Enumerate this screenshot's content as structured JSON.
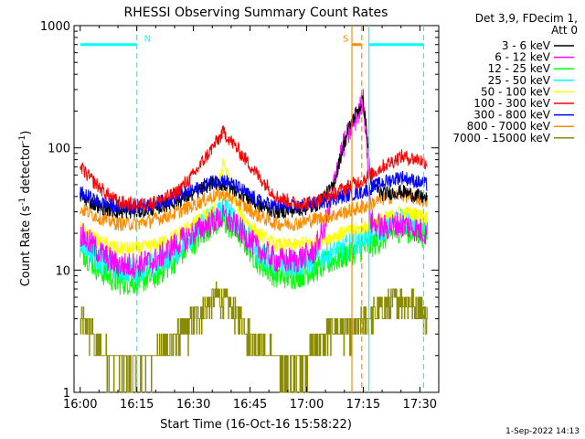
{
  "chart_data": {
    "type": "line",
    "title": "RHESSI Observing Summary Count Rates",
    "xlabel": "Start Time (16-Oct-16 15:58:22)",
    "ylabel_main": "Count Rate (s",
    "ylabel_sup1": "-1",
    "ylabel_mid": " detector",
    "ylabel_sup2": "-1",
    "ylabel_end": ")",
    "yscale": "log",
    "xlim": [
      "15:58:22",
      "17:35:00"
    ],
    "ylim": [
      1,
      1000
    ],
    "x_ticks": [
      {
        "t": "16:00",
        "m": 0
      },
      {
        "t": "16:15",
        "m": 15
      },
      {
        "t": "16:30",
        "m": 30
      },
      {
        "t": "16:45",
        "m": 45
      },
      {
        "t": "17:00",
        "m": 60
      },
      {
        "t": "17:15",
        "m": 75
      },
      {
        "t": "17:30",
        "m": 90
      }
    ],
    "y_ticks": [
      {
        "t": "1",
        "v": 1
      },
      {
        "t": "10",
        "v": 10
      },
      {
        "t": "100",
        "v": 100
      },
      {
        "t": "1000",
        "v": 1000
      }
    ],
    "legend_header": [
      "Det 3,9, FDecim 1,",
      "Att 0"
    ],
    "series": [
      {
        "name": "3 - 6 keV",
        "color": "#000000",
        "x": [
          0,
          5,
          10,
          15,
          20,
          25,
          30,
          35,
          38,
          42,
          47,
          52,
          57,
          62,
          67,
          69,
          71,
          73,
          75,
          76,
          77,
          80,
          85,
          90,
          92
        ],
        "y": [
          40,
          33,
          30,
          30,
          32,
          36,
          42,
          52,
          50,
          44,
          34,
          30,
          31,
          33,
          48,
          85,
          140,
          190,
          240,
          130,
          50,
          42,
          44,
          40,
          38
        ]
      },
      {
        "name": "6 - 12 keV",
        "color": "#ff00ff",
        "x": [
          0,
          5,
          10,
          15,
          20,
          25,
          30,
          35,
          38,
          42,
          47,
          52,
          57,
          62,
          64,
          66,
          68,
          70,
          72,
          74,
          75,
          76,
          77,
          80,
          85,
          90,
          92
        ],
        "y": [
          20,
          14,
          11,
          11,
          12,
          16,
          20,
          25,
          27,
          22,
          15,
          12,
          12,
          14,
          20,
          30,
          70,
          110,
          150,
          200,
          260,
          100,
          25,
          22,
          24,
          21,
          20
        ]
      },
      {
        "name": "12 - 25 keV",
        "color": "#00ff00",
        "x": [
          0,
          5,
          10,
          15,
          20,
          25,
          30,
          35,
          38,
          42,
          47,
          52,
          57,
          62,
          67,
          72,
          75,
          77,
          80,
          85,
          90,
          92
        ],
        "y": [
          15,
          10,
          8,
          8,
          9,
          12,
          17,
          24,
          25,
          20,
          12,
          9,
          9,
          10,
          12,
          14,
          15,
          16,
          18,
          22,
          20,
          19
        ]
      },
      {
        "name": "25 - 50 keV",
        "color": "#00ffff",
        "x": [
          0,
          5,
          10,
          15,
          20,
          25,
          30,
          35,
          38,
          42,
          47,
          52,
          57,
          62,
          67,
          72,
          75,
          77,
          80,
          85,
          90,
          92
        ],
        "y": [
          18,
          12,
          10,
          10,
          11,
          14,
          20,
          28,
          32,
          24,
          14,
          11,
          11,
          12,
          14,
          16,
          18,
          20,
          22,
          26,
          24,
          23
        ]
      },
      {
        "name": "50 - 100 keV",
        "color": "#ffff00",
        "x": [
          0,
          5,
          10,
          15,
          20,
          25,
          30,
          35,
          38,
          42,
          47,
          52,
          57,
          62,
          67,
          72,
          75,
          77,
          80,
          85,
          90,
          92
        ],
        "y": [
          22,
          17,
          15,
          15,
          16,
          19,
          24,
          30,
          75,
          30,
          20,
          16,
          16,
          17,
          19,
          21,
          22,
          24,
          26,
          30,
          28,
          27
        ]
      },
      {
        "name": "100 - 300 keV",
        "color": "#ff0000",
        "x": [
          0,
          3,
          7,
          10,
          15,
          20,
          25,
          30,
          35,
          38,
          42,
          47,
          52,
          57,
          62,
          67,
          72,
          75,
          77,
          80,
          85,
          90,
          92
        ],
        "y": [
          70,
          55,
          42,
          36,
          34,
          36,
          42,
          60,
          100,
          135,
          95,
          60,
          40,
          35,
          36,
          42,
          50,
          55,
          60,
          70,
          85,
          80,
          75
        ]
      },
      {
        "name": "300 - 800 keV",
        "color": "#0000ff",
        "x": [
          0,
          5,
          10,
          15,
          20,
          25,
          30,
          35,
          38,
          42,
          47,
          52,
          57,
          62,
          67,
          72,
          75,
          77,
          80,
          85,
          90,
          92
        ],
        "y": [
          43,
          36,
          33,
          33,
          35,
          39,
          45,
          53,
          55,
          47,
          37,
          33,
          33,
          35,
          38,
          42,
          44,
          47,
          52,
          58,
          52,
          50
        ]
      },
      {
        "name": "800 - 7000 keV",
        "color": "#ff8c00",
        "x": [
          0,
          5,
          10,
          15,
          20,
          25,
          30,
          35,
          38,
          42,
          47,
          52,
          57,
          62,
          67,
          72,
          75,
          77,
          80,
          85,
          90,
          92
        ],
        "y": [
          32,
          27,
          24,
          24,
          26,
          29,
          34,
          40,
          42,
          36,
          28,
          24,
          24,
          26,
          28,
          31,
          33,
          35,
          38,
          42,
          38,
          36
        ]
      },
      {
        "name": "7000 - 15000 keV",
        "color": "#8b8b00",
        "x": [
          0,
          3,
          6,
          9,
          12,
          15,
          18,
          21,
          24,
          27,
          30,
          33,
          36,
          39,
          42,
          45,
          48,
          51,
          54,
          57,
          60,
          63,
          66,
          69,
          72,
          75,
          78,
          81,
          84,
          87,
          90,
          92
        ],
        "y": [
          4,
          3,
          2,
          2,
          1.5,
          1.5,
          2,
          2,
          2.5,
          3,
          4,
          5,
          6,
          5.5,
          4,
          3,
          2.5,
          2,
          1.5,
          1.5,
          2,
          2.5,
          3,
          3.5,
          3,
          4,
          4.5,
          5,
          6,
          5.5,
          5,
          4
        ]
      }
    ],
    "vertical_lines": [
      {
        "x": 15,
        "color": "#00ffff",
        "style": "dashed"
      },
      {
        "x": 72,
        "color": "#ff8c00",
        "style": "solid"
      },
      {
        "x": 74.6,
        "color": "#ff8c00",
        "style": "dashed"
      },
      {
        "x": 76.5,
        "color": "#00ffff",
        "style": "solid"
      },
      {
        "x": 91,
        "color": "#00ffff",
        "style": "dashed"
      }
    ],
    "night_bars": [
      {
        "x0": 0,
        "x1": 15,
        "y": 700,
        "color": "#00ffff",
        "label": "N"
      },
      {
        "x0": 76.5,
        "x1": 91,
        "y": 700,
        "color": "#00ffff",
        "label": ""
      }
    ],
    "saa_bar": {
      "x0": 72,
      "x1": 74.6,
      "y": 700,
      "color": "#ff8c00",
      "label": "S"
    },
    "grid": false,
    "legend_position": "right"
  },
  "footer": {
    "timestamp": "1-Sep-2022 14:13"
  }
}
